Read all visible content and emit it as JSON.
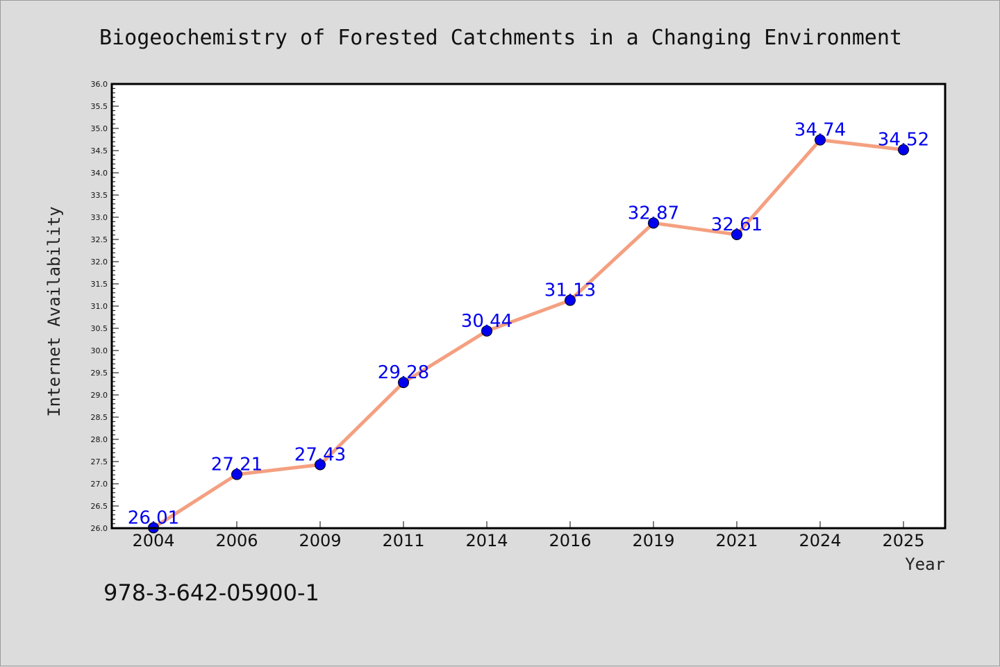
{
  "chart_data": {
    "type": "line",
    "title": "Biogeochemistry of Forested Catchments in a Changing Environment",
    "xlabel": "Year",
    "ylabel": "Internet Availability",
    "categories": [
      "2004",
      "2006",
      "2009",
      "2011",
      "2014",
      "2016",
      "2019",
      "2021",
      "2024",
      "2025"
    ],
    "series": [
      {
        "values": [
          26.01,
          27.21,
          27.43,
          29.28,
          30.44,
          31.13,
          32.87,
          32.61,
          34.74,
          34.52
        ],
        "data_labels": [
          "26.01",
          "27.21",
          "27.43",
          "29.28",
          "30.44",
          "31.13",
          "32.87",
          "32.61",
          "34.74",
          "34.52"
        ],
        "line_color": "#f4a080",
        "marker_color": "#0000ee",
        "label_color": "#0000ee"
      }
    ],
    "ylim": [
      26.0,
      36.0
    ],
    "y_major_ticks": [
      "26.0",
      "26.5",
      "27.0",
      "27.5",
      "28.0",
      "28.5",
      "29.0",
      "29.5",
      "30.0",
      "30.5",
      "31.0",
      "31.5",
      "32.0",
      "32.5",
      "33.0",
      "33.5",
      "34.0",
      "34.5",
      "35.0",
      "35.5",
      "36.0"
    ],
    "grid": false,
    "legend": "none"
  },
  "footer": {
    "text": "978-3-642-05900-1"
  },
  "colors": {
    "background": "#dcdcdc",
    "plot_background": "#ffffff"
  }
}
